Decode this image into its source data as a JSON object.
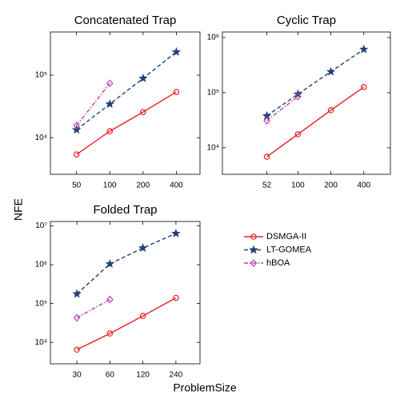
{
  "xlabel": "ProblemSize",
  "ylabel": "NFE",
  "chart_data": [
    {
      "type": "line",
      "title": "Concatenated Trap",
      "xscale": "log",
      "yscale": "log",
      "x": [
        50,
        100,
        200,
        400
      ],
      "xlim": [
        29,
        655
      ],
      "xticks": [
        50,
        100,
        200,
        400
      ],
      "ylim": [
        2600,
        490000
      ],
      "yticks": [
        {
          "value": 10000,
          "label": "10⁴"
        },
        {
          "value": 100000,
          "label": "10⁵"
        }
      ],
      "series": [
        {
          "name": "DSMGA-II",
          "color": "#e8202a",
          "marker": "circle",
          "linestyle": "solid",
          "values": [
            5400,
            12700,
            25700,
            54000
          ]
        },
        {
          "name": "LT-GOMEA",
          "color": "#22407a",
          "marker": "star",
          "linestyle": "dashed",
          "values": [
            13400,
            34500,
            89000,
            235000
          ]
        },
        {
          "name": "hBOA",
          "color": "#c040a8",
          "marker": "diamond",
          "linestyle": "dashdot",
          "values": [
            15600,
            74000,
            null,
            null
          ]
        }
      ]
    },
    {
      "type": "line",
      "title": "Cyclic Trap",
      "xscale": "log",
      "yscale": "log",
      "x": [
        52,
        100,
        200,
        400
      ],
      "xlim": [
        20.4,
        700
      ],
      "xticks": [
        52,
        100,
        200,
        400
      ],
      "ylim": [
        3300,
        1260000
      ],
      "yticks": [
        {
          "value": 10000,
          "label": "10⁴"
        },
        {
          "value": 100000,
          "label": "10⁵"
        },
        {
          "value": 1000000,
          "label": "10⁶"
        }
      ],
      "series": [
        {
          "color": "#e8202a",
          "marker": "circle",
          "linestyle": "solid",
          "values": [
            6900,
            17600,
            48000,
            126000
          ]
        },
        {
          "color": "#22407a",
          "marker": "star",
          "linestyle": "dashed",
          "values": [
            38000,
            94000,
            240000,
            610000
          ]
        },
        {
          "color": "#c040a8",
          "marker": "diamond",
          "linestyle": "dashdot",
          "values": [
            31000,
            85000,
            null,
            null
          ]
        }
      ]
    },
    {
      "type": "line",
      "title": "Folded Trap",
      "xscale": "log",
      "yscale": "log",
      "x": [
        30,
        60,
        120,
        240
      ],
      "xlim": [
        17.2,
        398
      ],
      "xticks": [
        30,
        60,
        120,
        240
      ],
      "ylim": [
        2800,
        13000000
      ],
      "yticks": [
        {
          "value": 10000,
          "label": "10⁴"
        },
        {
          "value": 100000,
          "label": "10⁵"
        },
        {
          "value": 1000000,
          "label": "10⁶"
        },
        {
          "value": 10000000,
          "label": "10⁷"
        }
      ],
      "series": [
        {
          "color": "#e8202a",
          "marker": "circle",
          "linestyle": "solid",
          "values": [
            6500,
            16900,
            48000,
            140000
          ]
        },
        {
          "color": "#22407a",
          "marker": "star",
          "linestyle": "dashed",
          "values": [
            177000,
            1050000,
            2700000,
            6400000
          ]
        },
        {
          "color": "#c040a8",
          "marker": "diamond",
          "linestyle": "dashdot",
          "values": [
            43000,
            127000,
            null,
            null
          ]
        }
      ]
    }
  ]
}
